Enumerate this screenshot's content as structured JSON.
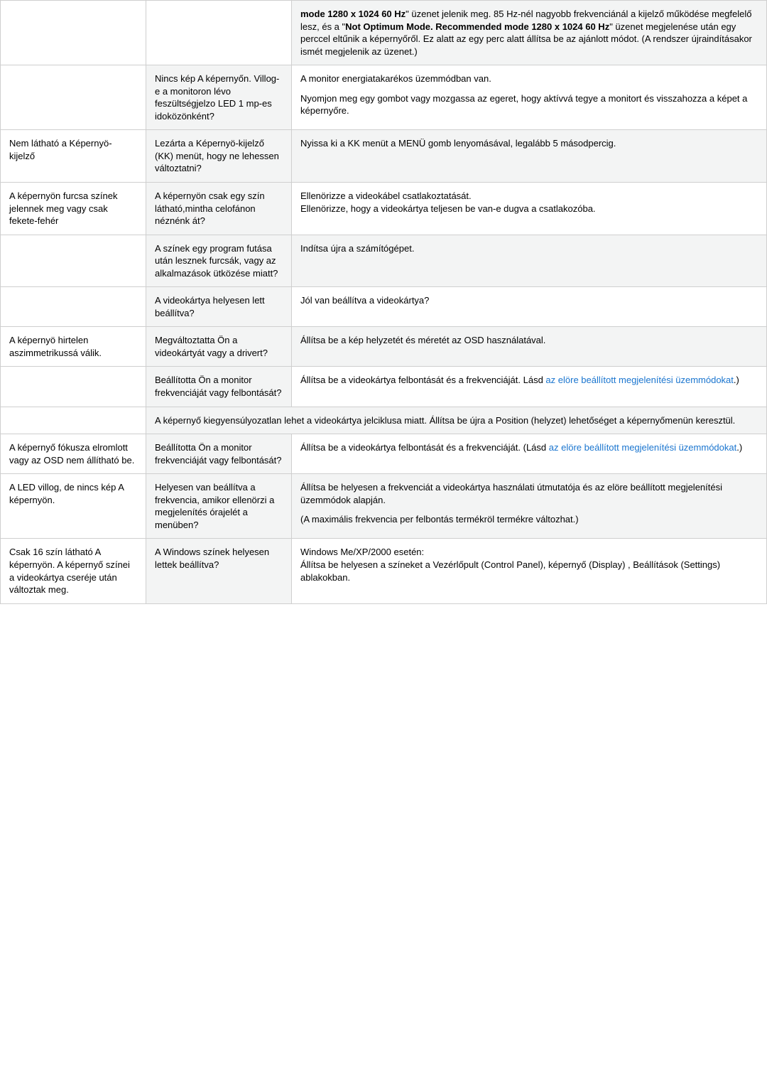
{
  "rows": [
    {
      "c1": "",
      "c2": "",
      "c3": [
        {
          "t": "bold",
          "v": "mode 1280 x 1024 60 Hz"
        },
        {
          "t": "text",
          "v": "\" üzenet jelenik meg. 85 Hz-nél nagyobb frekvenciánál a kijelző működése megfelelő lesz, és a \""
        },
        {
          "t": "bold",
          "v": "Not Optimum Mode. Recommended mode 1280 x 1024 60 Hz"
        },
        {
          "t": "text",
          "v": "\" üzenet megjelenése után egy perccel eltűnik a képernyőről. Ez alatt az egy perc alatt állítsa be az ajánlott módot. (A rendszer újraindításakor ismét megjelenik az üzenet.)"
        }
      ],
      "c3_shade": true
    },
    {
      "c1": "",
      "c2": "Nincs kép A képernyőn. Villog-e a monitoron lévo feszültségjelzo LED 1 mp-es idoközönként?",
      "c3_plain": "A monitor energiatakarékos üzemmódban van.\n\nNyomjon meg egy gombot vagy mozgassa az egeret, hogy aktívvá tegye a monitort és visszahozza a képet a képernyőre.",
      "c2_shade": true
    },
    {
      "c1": "Nem látható a Képernyö-kijelző",
      "c2": "Lezárta a Képernyö-kijelző (KK) menüt, hogy ne lehessen változtatni?",
      "c3_plain": "Nyissa ki a KK menüt a MENÜ gomb lenyomásával, legalább 5 másodpercig.",
      "c2_shade": true,
      "c3_shade": true
    },
    {
      "c1": "A képernyön furcsa színek jelennek meg vagy csak fekete-fehér",
      "c2": "A képernyön csak egy szín látható,mintha celofánon néznénk át?",
      "c3_plain": "Ellenörizze a videokábel csatlakoztatását.\nEllenörizze, hogy a videokártya teljesen be van-e dugva a csatlakozóba.",
      "c2_shade": true
    },
    {
      "c1": "",
      "c2": "A színek egy program futása után lesznek furcsák, vagy az alkalmazások ütközése miatt?",
      "c3_plain": "Indítsa újra a számítógépet.",
      "c2_shade": true,
      "c3_shade": true
    },
    {
      "c1": "",
      "c2": "A videokártya helyesen lett beállítva?",
      "c3_plain": "Jól van beállítva a videokártya?",
      "c2_shade": true
    },
    {
      "c1": "A képernyö hirtelen aszimmetrikussá válik.",
      "c2": "Megváltoztatta Ön a videokártyát vagy a drivert?",
      "c3_plain": "Állítsa be a kép helyzetét és méretét az OSD használatával.",
      "c2_shade": true,
      "c3_shade": true
    },
    {
      "c1": "",
      "c2": "Beállította Ön a monitor frekvenciáját vagy felbontását?",
      "c3": [
        {
          "t": "text",
          "v": "Állítsa be a videokártya felbontását és a frekvenciáját. Lásd "
        },
        {
          "t": "link",
          "v": "az elöre beállított megjelenítési üzemmódokat"
        },
        {
          "t": "text",
          "v": ".)"
        }
      ],
      "c2_shade": true
    },
    {
      "colspan23": true,
      "c1": "",
      "c3_plain": "A képernyő kiegyensúlyozatlan lehet a videokártya jelciklusa miatt. Állítsa be újra a Position (helyzet) lehetőséget a képernyőmenün keresztül.",
      "c3_shade": true
    },
    {
      "c1": "A képernyő fókusza elromlott vagy az OSD nem állítható be.",
      "c2": "Beállította Ön a monitor frekvenciáját vagy felbontását?",
      "c3": [
        {
          "t": "text",
          "v": "Állítsa be a videokártya felbontását és a frekvenciáját. (Lásd "
        },
        {
          "t": "link",
          "v": "az elöre beállított megjelenítési üzemmódokat"
        },
        {
          "t": "text",
          "v": ".)"
        }
      ],
      "c2_shade": true
    },
    {
      "c1": "A LED villog, de nincs kép A képernyön.",
      "c2": "Helyesen van beállítva a frekvencia, amikor ellenörzi a megjelenítés órajelét a menüben?",
      "c3_plain": "Állítsa be helyesen a frekvenciát a videokártya használati útmutatója és az elöre beállított megjelenítési üzemmódok alapján.\n\n(A maximális frekvencia per felbontás termékröl termékre változhat.)",
      "c2_shade": true,
      "c3_shade": true
    },
    {
      "c1": "Csak 16 szín látható A képernyön. A képernyő színei a videokártya cseréje után változtak meg.",
      "c2": "A Windows színek helyesen lettek beállítva?",
      "c3_plain": "Windows Me/XP/2000 esetén:\nÁllítsa be helyesen a színeket a Vezérlőpult (Control Panel), képernyő (Display) , Beállítások (Settings) ablakokban.",
      "c2_shade": true
    }
  ]
}
